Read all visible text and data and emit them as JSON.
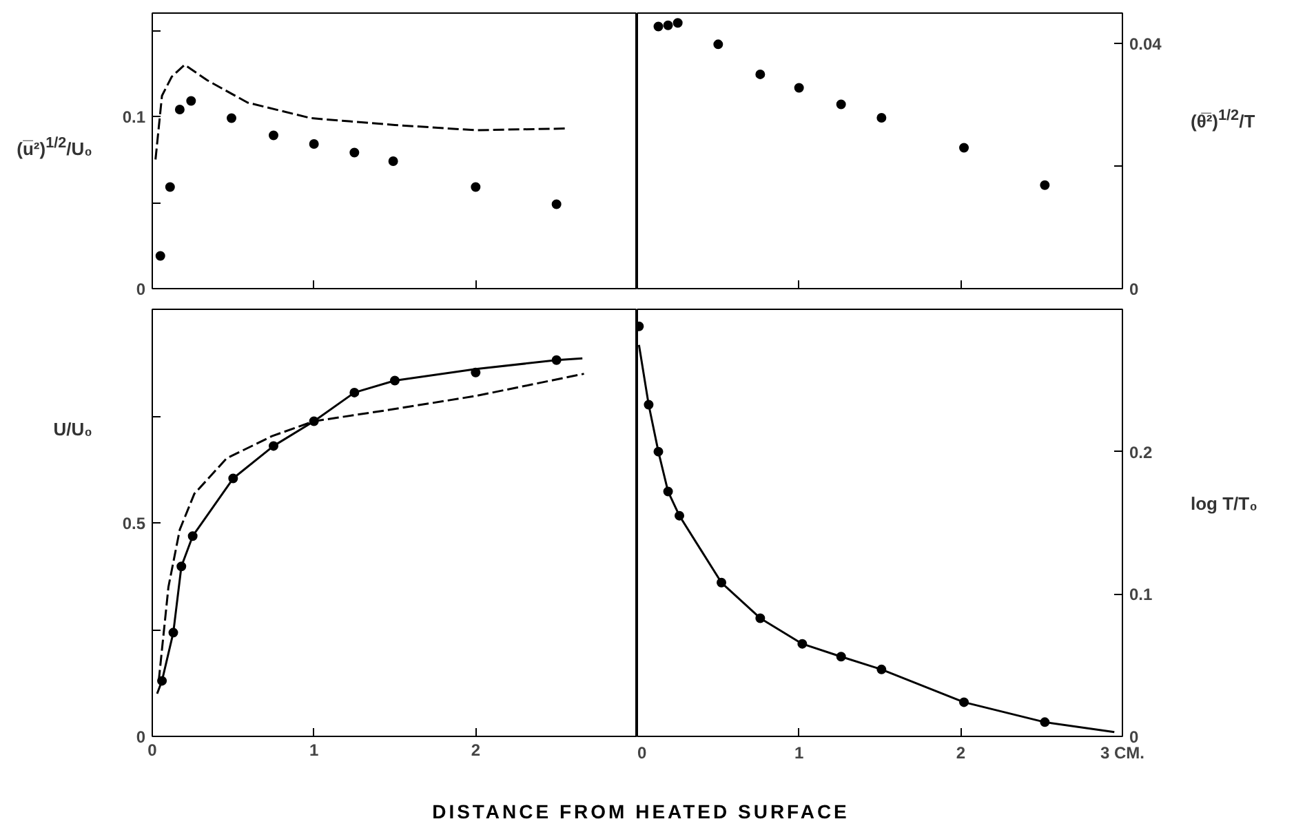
{
  "chart_data": [
    {
      "type": "scatter",
      "ylabel": "(u̅²)$^{1/2}$/U₀",
      "xlim": [
        0,
        3
      ],
      "xticks": [
        0,
        1,
        2,
        3
      ],
      "ylim": [
        0,
        0.16
      ],
      "yticks": [
        {
          "value": 0,
          "label": "0"
        },
        {
          "value": 0.05,
          "label": null
        },
        0.1,
        {
          "value": 0.15,
          "label": null
        }
      ],
      "tick_labels": "y",
      "series": [
        {
          "type": "scatter",
          "color": "#000000",
          "marker": "circle",
          "x": [
            0.05,
            0.11,
            0.17,
            0.24,
            0.49,
            0.75,
            1.0,
            1.25,
            1.49,
            2.0,
            2.5
          ],
          "values": [
            0.019,
            0.059,
            0.104,
            0.109,
            0.099,
            0.089,
            0.084,
            0.079,
            0.074,
            0.059,
            0.049
          ]
        },
        {
          "type": "line",
          "color": "#000000",
          "line_style": "dashed",
          "x": [
            0.02,
            0.06,
            0.12,
            0.2,
            0.34,
            0.59,
            0.98,
            1.5,
            2.0,
            2.57
          ],
          "values": [
            0.075,
            0.112,
            0.123,
            0.13,
            0.121,
            0.108,
            0.099,
            0.095,
            0.092,
            0.093
          ]
        }
      ]
    },
    {
      "type": "scatter",
      "y2label": "(θ̅²)$^{1/2}$/T",
      "xlim": [
        0,
        3
      ],
      "xticks": [
        0,
        1,
        2,
        3
      ],
      "y2lim": [
        0,
        0.045
      ],
      "y2ticks": [
        {
          "value": 0,
          "label": "0"
        },
        {
          "value": 0.02,
          "label": null
        },
        0.04
      ],
      "tick_labels": "y",
      "series": [
        {
          "type": "scatter",
          "axis": "y2",
          "color": "#000000",
          "marker": "circle",
          "x": [
            0.13,
            0.19,
            0.25,
            0.5,
            0.76,
            1.0,
            1.26,
            1.51,
            2.02,
            2.52
          ],
          "values": [
            0.0428,
            0.043,
            0.0434,
            0.0399,
            0.035,
            0.0328,
            0.0301,
            0.0279,
            0.023,
            0.0169
          ]
        }
      ]
    },
    {
      "type": "scatter",
      "ylabel": "U/U₀",
      "xlabel": "DISTANCE FROM HEATED SURFACE",
      "xlim": [
        0,
        3
      ],
      "xticks": [
        0,
        1,
        2
      ],
      "ylim": [
        0,
        1
      ],
      "yticks": [
        {
          "value": 0,
          "label": "0"
        },
        {
          "value": 0.25,
          "label": null
        },
        0.5,
        {
          "value": 0.75,
          "label": null
        }
      ],
      "series": [
        {
          "type": "scatter",
          "color": "#000000",
          "marker": "circle",
          "x": [
            0.06,
            0.13,
            0.18,
            0.25,
            0.5,
            0.75,
            1.0,
            1.25,
            1.5,
            2.0,
            2.5
          ],
          "values": [
            0.13,
            0.243,
            0.398,
            0.469,
            0.604,
            0.68,
            0.738,
            0.805,
            0.833,
            0.852,
            0.881
          ]
        },
        {
          "type": "line",
          "color": "#000000",
          "line_style": "solid",
          "x": [
            0.03,
            0.06,
            0.13,
            0.18,
            0.25,
            0.5,
            0.75,
            1.0,
            1.25,
            1.5,
            2.0,
            2.5,
            2.66
          ],
          "values": [
            0.1,
            0.13,
            0.243,
            0.398,
            0.469,
            0.604,
            0.68,
            0.738,
            0.805,
            0.833,
            0.86,
            0.881,
            0.885
          ]
        },
        {
          "type": "line",
          "color": "#000000",
          "line_style": "dashed",
          "x": [
            0.04,
            0.1,
            0.17,
            0.26,
            0.46,
            0.74,
            1.0,
            1.49,
            2.0,
            2.67
          ],
          "values": [
            0.13,
            0.35,
            0.484,
            0.568,
            0.651,
            0.703,
            0.738,
            0.766,
            0.797,
            0.849
          ]
        }
      ]
    },
    {
      "type": "scatter",
      "y2label": "log T/T₀",
      "xlim": [
        0,
        3
      ],
      "xticks": [
        0,
        1,
        2,
        {
          "value": 3,
          "label": "3 CM."
        }
      ],
      "y2lim": [
        0,
        0.3
      ],
      "y2ticks": [
        0,
        0.1,
        0.2
      ],
      "series": [
        {
          "type": "scatter",
          "axis": "y2",
          "color": "#000000",
          "marker": "circle",
          "x": [
            0.01,
            0.07,
            0.13,
            0.19,
            0.26,
            0.52,
            0.76,
            1.02,
            1.26,
            1.51,
            2.02,
            2.52
          ],
          "values": [
            0.288,
            0.233,
            0.2,
            0.172,
            0.155,
            0.108,
            0.083,
            0.065,
            0.056,
            0.047,
            0.024,
            0.01
          ]
        },
        {
          "type": "line",
          "axis": "y2",
          "color": "#000000",
          "line_style": "solid",
          "x": [
            0.01,
            0.07,
            0.13,
            0.19,
            0.26,
            0.52,
            0.76,
            1.02,
            1.26,
            1.51,
            2.02,
            2.52,
            2.95
          ],
          "values": [
            0.275,
            0.233,
            0.2,
            0.172,
            0.155,
            0.108,
            0.083,
            0.065,
            0.056,
            0.047,
            0.024,
            0.01,
            0.003
          ]
        }
      ]
    }
  ]
}
